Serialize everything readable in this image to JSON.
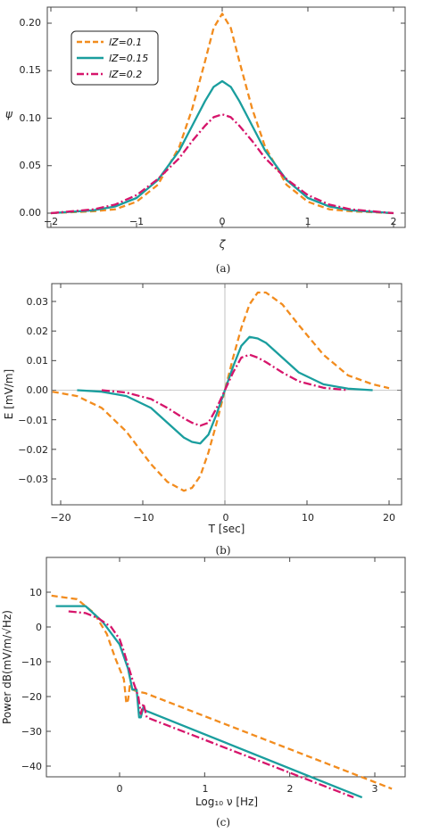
{
  "chart_data": [
    {
      "type": "line",
      "caption": "(a)",
      "xlabel": "ζ",
      "ylabel": "ψ",
      "xlim": [
        -2,
        2
      ],
      "ylim": [
        0,
        0.22
      ],
      "xticks": [
        -2,
        -1,
        0,
        1,
        2
      ],
      "xtick_labels": [
        "−2",
        "−1",
        "0",
        "1",
        "2"
      ],
      "yticks": [
        0,
        0.05,
        0.1,
        0.15,
        0.2
      ],
      "ytick_labels": [
        "0.00",
        "0.05",
        "0.10",
        "0.15",
        "0.20"
      ],
      "legend_position": "top-left",
      "series": [
        {
          "name": "l_Z=0.1",
          "legend_label": "lZ=0.1",
          "style": "dashed",
          "color": "#f28c1e",
          "x": [
            -2,
            -1.5,
            -1.25,
            -1,
            -0.75,
            -0.5,
            -0.35,
            -0.2,
            -0.1,
            0,
            0.1,
            0.2,
            0.35,
            0.5,
            0.75,
            1,
            1.25,
            1.5,
            2
          ],
          "y": [
            0.0,
            0.002,
            0.004,
            0.012,
            0.03,
            0.07,
            0.11,
            0.16,
            0.195,
            0.21,
            0.195,
            0.16,
            0.11,
            0.07,
            0.03,
            0.012,
            0.004,
            0.002,
            0.0
          ]
        },
        {
          "name": "l_Z=0.15",
          "legend_label": "lZ=0.15",
          "style": "solid",
          "color": "#1a9e9e",
          "x": [
            -2,
            -1.5,
            -1.25,
            -1,
            -0.75,
            -0.5,
            -0.35,
            -0.2,
            -0.1,
            0,
            0.1,
            0.2,
            0.35,
            0.5,
            0.75,
            1,
            1.25,
            1.5,
            2
          ],
          "y": [
            0.0,
            0.003,
            0.007,
            0.016,
            0.035,
            0.066,
            0.092,
            0.118,
            0.133,
            0.139,
            0.133,
            0.118,
            0.092,
            0.066,
            0.035,
            0.016,
            0.007,
            0.003,
            0.0
          ]
        },
        {
          "name": "l_Z=0.2",
          "legend_label": "lZ=0.2",
          "style": "dashdot",
          "color": "#d6156b",
          "x": [
            -2,
            -1.5,
            -1.25,
            -1,
            -0.75,
            -0.5,
            -0.35,
            -0.2,
            -0.1,
            0,
            0.1,
            0.2,
            0.35,
            0.5,
            0.75,
            1,
            1.25,
            1.5,
            2
          ],
          "y": [
            0.0,
            0.004,
            0.009,
            0.019,
            0.036,
            0.058,
            0.076,
            0.092,
            0.101,
            0.104,
            0.101,
            0.092,
            0.076,
            0.058,
            0.036,
            0.019,
            0.009,
            0.004,
            0.0
          ]
        }
      ]
    },
    {
      "type": "line",
      "caption": "(b)",
      "xlabel": "T [sec]",
      "ylabel": "E [mV/m]",
      "xlim": [
        -22,
        21
      ],
      "ylim": [
        -0.036,
        0.036
      ],
      "xticks": [
        -20,
        -10,
        0,
        10,
        20
      ],
      "xtick_labels": [
        "−20",
        "−10",
        "0",
        "10",
        "20"
      ],
      "yticks": [
        -0.03,
        -0.02,
        -0.01,
        0,
        0.01,
        0.02,
        0.03
      ],
      "ytick_labels": [
        "−0.03",
        "−0.02",
        "−0.01",
        "0.00",
        "0.01",
        "0.02",
        "0.03"
      ],
      "series": [
        {
          "style": "dashed",
          "color": "#f28c1e",
          "x": [
            -21,
            -18,
            -15,
            -12,
            -9,
            -7,
            -5,
            -4,
            -3,
            -2,
            -1,
            0,
            1,
            2,
            3,
            4,
            5,
            7,
            9,
            12,
            15,
            18,
            20
          ],
          "y": [
            -0.0005,
            -0.002,
            -0.006,
            -0.014,
            -0.025,
            -0.031,
            -0.034,
            -0.033,
            -0.029,
            -0.021,
            -0.011,
            0.0,
            0.011,
            0.021,
            0.029,
            0.033,
            0.033,
            0.029,
            0.022,
            0.012,
            0.005,
            0.002,
            0.0007
          ]
        },
        {
          "style": "solid",
          "color": "#1a9e9e",
          "x": [
            -18,
            -15,
            -12,
            -9,
            -7,
            -5,
            -4,
            -3,
            -2,
            -1,
            0,
            1,
            2,
            3,
            4,
            5,
            7,
            9,
            12,
            15,
            18
          ],
          "y": [
            0.0,
            -0.0005,
            -0.002,
            -0.006,
            -0.011,
            -0.016,
            -0.0175,
            -0.018,
            -0.015,
            -0.008,
            0.0,
            0.008,
            0.015,
            0.018,
            0.0175,
            0.016,
            0.011,
            0.006,
            0.002,
            0.0005,
            0.0
          ]
        },
        {
          "style": "dashdot",
          "color": "#d6156b",
          "x": [
            -15,
            -12,
            -9,
            -7,
            -5,
            -4,
            -3,
            -2,
            -1,
            0,
            1,
            2,
            3,
            4,
            5,
            7,
            9,
            12,
            15
          ],
          "y": [
            0.0,
            -0.0008,
            -0.003,
            -0.006,
            -0.0095,
            -0.011,
            -0.012,
            -0.011,
            -0.006,
            0.0,
            0.006,
            0.011,
            0.012,
            0.011,
            0.0095,
            0.006,
            0.003,
            0.0008,
            0.0
          ]
        }
      ]
    },
    {
      "type": "line",
      "caption": "(c)",
      "xlabel": "Log₁₀ ν [Hz]",
      "ylabel": "Power dB(mV/m/√Hz)",
      "xlim": [
        -0.8,
        3.3
      ],
      "ylim": [
        -49,
        12
      ],
      "xticks": [
        0,
        1,
        2,
        3
      ],
      "xtick_labels": [
        "0",
        "1",
        "2",
        "3"
      ],
      "yticks": [
        -40,
        -30,
        -20,
        -10,
        0,
        10
      ],
      "ytick_labels": [
        "−40",
        "−30",
        "−20",
        "−10",
        "0",
        "10"
      ],
      "series": [
        {
          "style": "dashed",
          "color": "#f28c1e",
          "x": [
            -0.8,
            -0.5,
            -0.3,
            -0.15,
            -0.05,
            0.05,
            0.08,
            0.1,
            0.12,
            0.15,
            0.2,
            0.3,
            3.2
          ],
          "y": [
            9,
            8,
            4,
            -2,
            -9,
            -15,
            -22,
            -21,
            -17,
            -18,
            -18.5,
            -19,
            -46.5
          ]
        },
        {
          "style": "solid",
          "color": "#1a9e9e",
          "x": [
            -0.75,
            -0.4,
            -0.2,
            0,
            0.1,
            0.15,
            0.2,
            0.23,
            0.25,
            0.28,
            0.3,
            2.85
          ],
          "y": [
            6,
            6,
            1.5,
            -5,
            -12,
            -18,
            -18,
            -26,
            -26,
            -23,
            -24,
            -49
          ]
        },
        {
          "style": "dashdot",
          "color": "#d6156b",
          "x": [
            -0.6,
            -0.4,
            -0.25,
            -0.1,
            0.0,
            0.05,
            0.1,
            0.15,
            0.22,
            0.25,
            0.28,
            0.32,
            2.75
          ],
          "y": [
            4.5,
            4,
            2.5,
            0,
            -3.5,
            -7,
            -11,
            -15,
            -20,
            -25,
            -22,
            -26,
            -49
          ]
        }
      ]
    }
  ]
}
